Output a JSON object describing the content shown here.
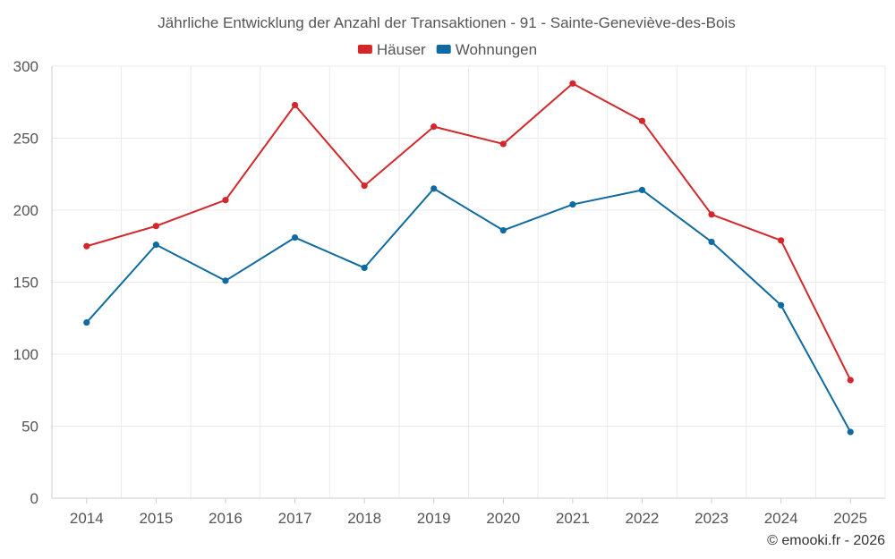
{
  "chart_data": {
    "type": "line",
    "title": "Jährliche Entwicklung der Anzahl der Transaktionen - 91 - Sainte-Geneviève-des-Bois",
    "categories": [
      "2014",
      "2015",
      "2016",
      "2017",
      "2018",
      "2019",
      "2020",
      "2021",
      "2022",
      "2023",
      "2024",
      "2025"
    ],
    "series": [
      {
        "name": "Häuser",
        "color": "#d3272b",
        "values": [
          175,
          189,
          207,
          273,
          217,
          258,
          246,
          288,
          262,
          197,
          179,
          82
        ]
      },
      {
        "name": "Wohnungen",
        "color": "#0e6aa0",
        "values": [
          122,
          176,
          151,
          181,
          160,
          215,
          186,
          204,
          214,
          178,
          134,
          46
        ]
      }
    ],
    "ylim": [
      0,
      300
    ],
    "yticks": [
      0,
      50,
      100,
      150,
      200,
      250,
      300
    ],
    "xlabel": "",
    "ylabel": "",
    "grid": true,
    "legend_position": "top-center"
  },
  "credit": "© emooki.fr - 2026"
}
